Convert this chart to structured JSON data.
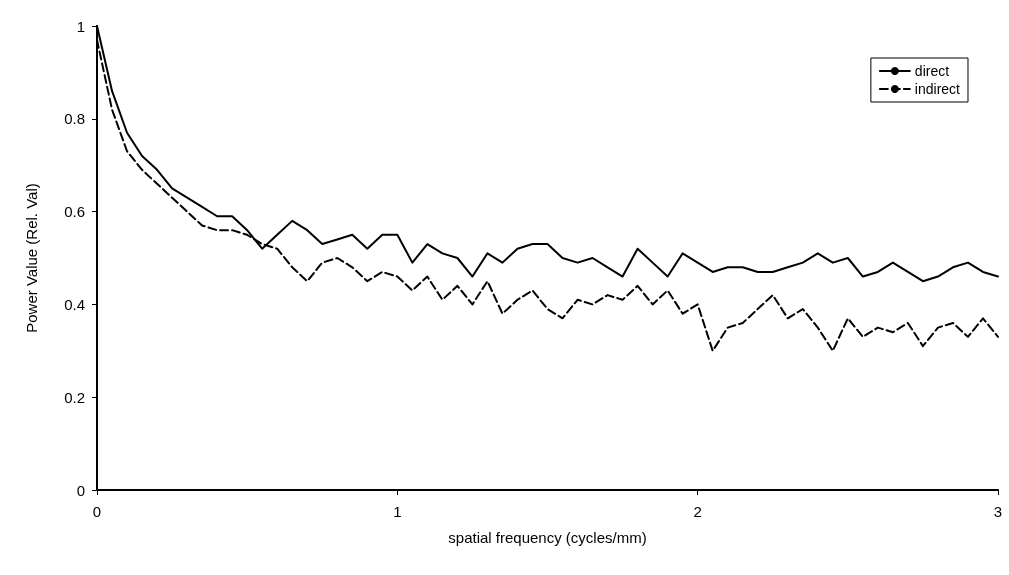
{
  "chart_data": {
    "type": "line",
    "xlabel": "spatial frequency (cycles/mm)",
    "ylabel": "Power Value (Rel. Val)",
    "x": [
      0,
      0.05,
      0.1,
      0.15,
      0.2,
      0.25,
      0.3,
      0.35,
      0.4,
      0.45,
      0.5,
      0.55,
      0.6,
      0.65,
      0.7,
      0.75,
      0.8,
      0.85,
      0.9,
      0.95,
      1,
      1.05,
      1.1,
      1.15,
      1.2,
      1.25,
      1.3,
      1.35,
      1.4,
      1.45,
      1.5,
      1.55,
      1.6,
      1.65,
      1.7,
      1.75,
      1.8,
      1.85,
      1.9,
      1.95,
      2,
      2.05,
      2.1,
      2.15,
      2.2,
      2.25,
      2.3,
      2.35,
      2.4,
      2.45,
      2.5,
      2.55,
      2.6,
      2.65,
      2.7,
      2.75,
      2.8,
      2.85,
      2.9,
      2.95,
      3
    ],
    "series": [
      {
        "name": "direct",
        "color": "#000000",
        "line_style": "solid",
        "values": [
          1.0,
          0.86,
          0.77,
          0.72,
          0.69,
          0.65,
          0.63,
          0.61,
          0.59,
          0.59,
          0.56,
          0.52,
          0.55,
          0.58,
          0.56,
          0.53,
          0.54,
          0.55,
          0.52,
          0.55,
          0.55,
          0.49,
          0.53,
          0.51,
          0.5,
          0.46,
          0.51,
          0.49,
          0.52,
          0.53,
          0.53,
          0.5,
          0.49,
          0.5,
          0.48,
          0.46,
          0.52,
          0.49,
          0.46,
          0.51,
          0.49,
          0.47,
          0.48,
          0.48,
          0.47,
          0.47,
          0.48,
          0.49,
          0.51,
          0.49,
          0.5,
          0.46,
          0.47,
          0.49,
          0.47,
          0.45,
          0.46,
          0.48,
          0.49,
          0.47,
          0.46
        ]
      },
      {
        "name": "indirect",
        "color": "#000000",
        "line_style": "dashed",
        "values": [
          0.97,
          0.82,
          0.73,
          0.69,
          0.66,
          0.63,
          0.6,
          0.57,
          0.56,
          0.56,
          0.55,
          0.53,
          0.52,
          0.48,
          0.45,
          0.49,
          0.5,
          0.48,
          0.45,
          0.47,
          0.46,
          0.43,
          0.46,
          0.41,
          0.44,
          0.4,
          0.45,
          0.38,
          0.41,
          0.43,
          0.39,
          0.37,
          0.41,
          0.4,
          0.42,
          0.41,
          0.44,
          0.4,
          0.43,
          0.38,
          0.4,
          0.3,
          0.35,
          0.36,
          0.39,
          0.42,
          0.37,
          0.39,
          0.35,
          0.3,
          0.37,
          0.33,
          0.35,
          0.34,
          0.36,
          0.31,
          0.35,
          0.36,
          0.33,
          0.37,
          0.33
        ]
      }
    ],
    "xlim": [
      0,
      3
    ],
    "xticks": [
      0,
      1,
      2,
      3
    ],
    "ylim": [
      0,
      1
    ],
    "yticks": [
      0,
      0.2,
      0.4,
      0.6,
      0.8,
      1
    ],
    "grid": false,
    "legend": "top right",
    "marker": "none"
  }
}
